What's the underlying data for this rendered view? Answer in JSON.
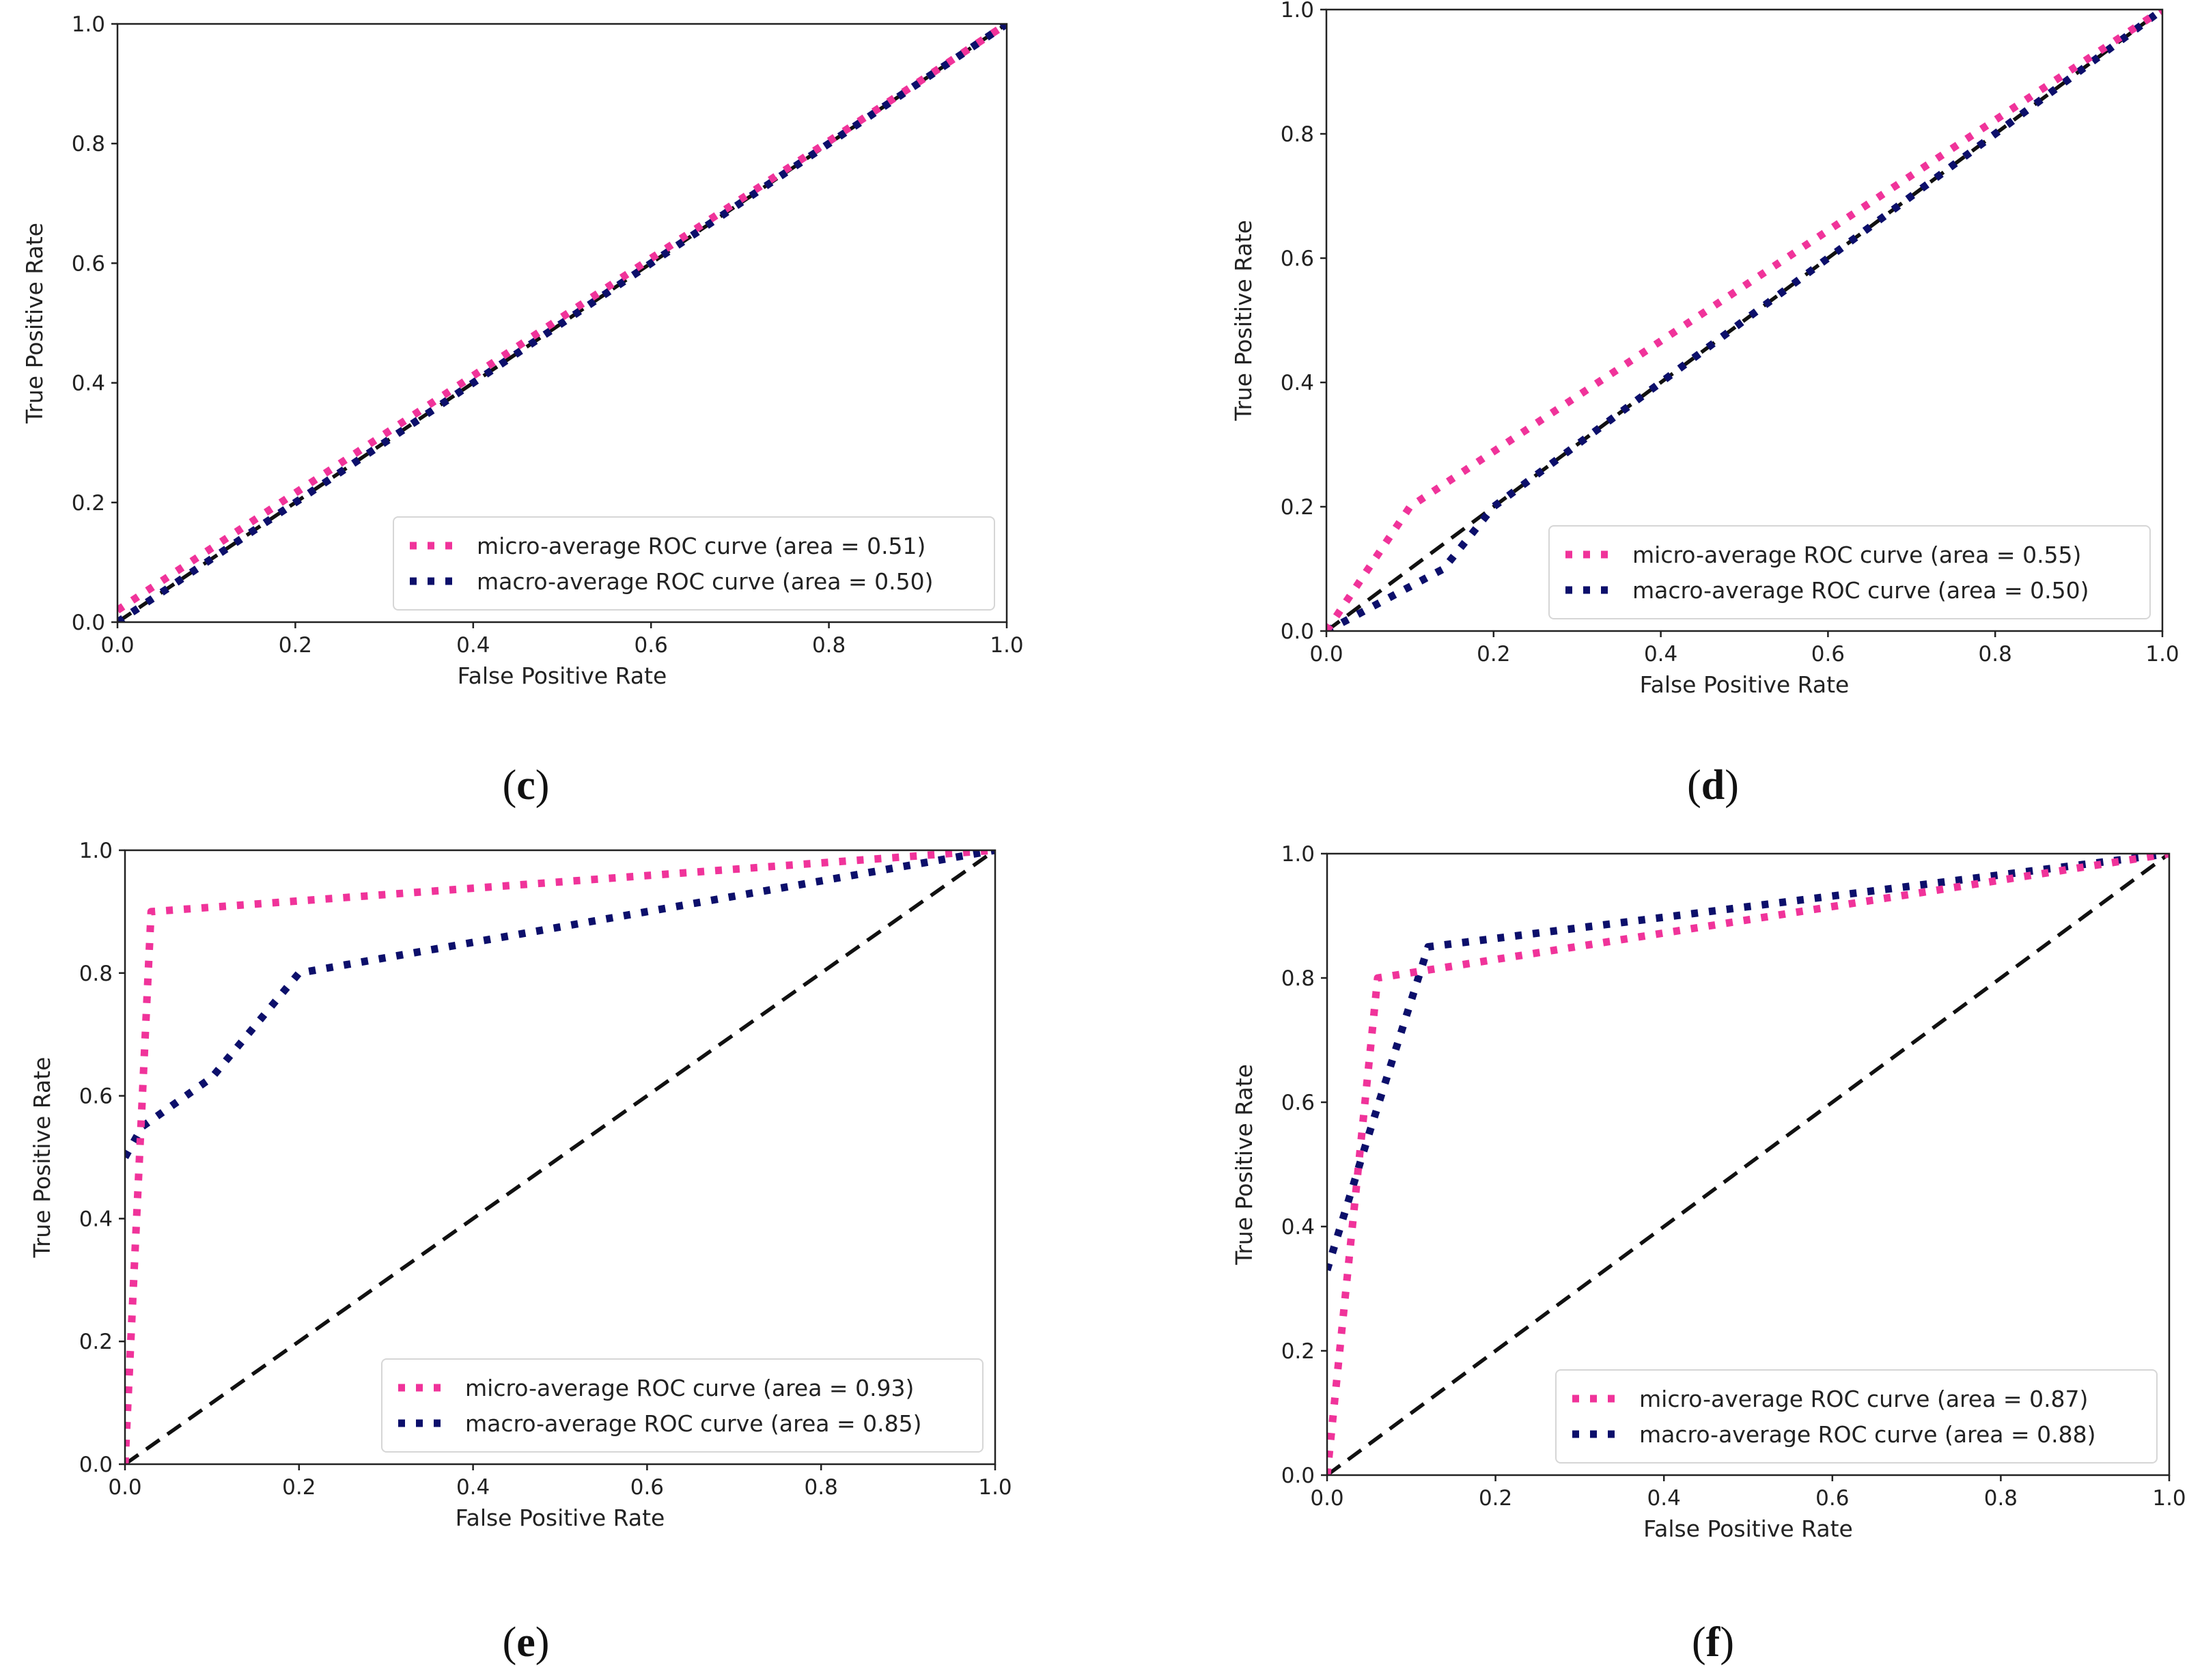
{
  "colors": {
    "micro": "#f0339a",
    "macro": "#0c0f6b",
    "chance": "#111111",
    "axis": "#222222"
  },
  "legend_labels": {
    "micro_prefix": "micro-average ROC curve (area = ",
    "macro_prefix": "macro-average ROC curve (area = ",
    "suffix": ")"
  },
  "chart_data": [
    {
      "panel": "c",
      "type": "line",
      "xlabel": "False Positive Rate",
      "ylabel": "True Positive Rate",
      "xlim": [
        0,
        1
      ],
      "ylim": [
        0,
        1
      ],
      "xticks": [
        "0.0",
        "0.2",
        "0.4",
        "0.6",
        "0.8",
        "1.0"
      ],
      "yticks": [
        "0.0",
        "0.2",
        "0.4",
        "0.6",
        "0.8",
        "1.0"
      ],
      "legend_position": "lower-right",
      "series": [
        {
          "name": "micro-average",
          "area": "0.51",
          "x": [
            0,
            1
          ],
          "y": [
            0.02,
            1
          ]
        },
        {
          "name": "macro-average",
          "area": "0.50",
          "x": [
            0,
            1
          ],
          "y": [
            0,
            1
          ]
        },
        {
          "name": "chance",
          "x": [
            0,
            1
          ],
          "y": [
            0,
            1
          ]
        }
      ]
    },
    {
      "panel": "d",
      "type": "line",
      "xlabel": "False Positive Rate",
      "ylabel": "True Positive Rate",
      "xlim": [
        0,
        1
      ],
      "ylim": [
        0,
        1
      ],
      "xticks": [
        "0.0",
        "0.2",
        "0.4",
        "0.6",
        "0.8",
        "1.0"
      ],
      "yticks": [
        "0.0",
        "0.2",
        "0.4",
        "0.6",
        "0.8",
        "1.0"
      ],
      "legend_position": "lower-right",
      "series": [
        {
          "name": "micro-average",
          "area": "0.55",
          "x": [
            0,
            0.1,
            1
          ],
          "y": [
            0,
            0.2,
            1
          ]
        },
        {
          "name": "macro-average",
          "area": "0.50",
          "x": [
            0,
            0.14,
            0.2,
            1
          ],
          "y": [
            0,
            0.1,
            0.2,
            1
          ]
        },
        {
          "name": "chance",
          "x": [
            0,
            1
          ],
          "y": [
            0,
            1
          ]
        }
      ]
    },
    {
      "panel": "e",
      "type": "line",
      "xlabel": "False Positive Rate",
      "ylabel": "True Positive Rate",
      "xlim": [
        0,
        1
      ],
      "ylim": [
        0,
        1
      ],
      "xticks": [
        "0.0",
        "0.2",
        "0.4",
        "0.6",
        "0.8",
        "1.0"
      ],
      "yticks": [
        "0.0",
        "0.2",
        "0.4",
        "0.6",
        "0.8",
        "1.0"
      ],
      "legend_position": "lower-right",
      "series": [
        {
          "name": "micro-average",
          "area": "0.93",
          "x": [
            0,
            0.03,
            1
          ],
          "y": [
            0,
            0.9,
            1
          ]
        },
        {
          "name": "macro-average",
          "area": "0.85",
          "x": [
            0,
            0.02,
            0.1,
            0.2,
            1
          ],
          "y": [
            0.5,
            0.55,
            0.63,
            0.8,
            1
          ]
        },
        {
          "name": "chance",
          "x": [
            0,
            1
          ],
          "y": [
            0,
            1
          ]
        }
      ]
    },
    {
      "panel": "f",
      "type": "line",
      "xlabel": "False Positive Rate",
      "ylabel": "True Positive Rate",
      "xlim": [
        0,
        1
      ],
      "ylim": [
        0,
        1
      ],
      "xticks": [
        "0.0",
        "0.2",
        "0.4",
        "0.6",
        "0.8",
        "1.0"
      ],
      "yticks": [
        "0.0",
        "0.2",
        "0.4",
        "0.6",
        "0.8",
        "1.0"
      ],
      "legend_position": "lower-right",
      "series": [
        {
          "name": "micro-average",
          "area": "0.87",
          "x": [
            0,
            0.06,
            1
          ],
          "y": [
            0,
            0.8,
            1
          ]
        },
        {
          "name": "macro-average",
          "area": "0.88",
          "x": [
            0,
            0.05,
            0.12,
            1
          ],
          "y": [
            0.33,
            0.55,
            0.85,
            1
          ]
        },
        {
          "name": "chance",
          "x": [
            0,
            1
          ],
          "y": [
            0,
            1
          ]
        }
      ]
    }
  ]
}
